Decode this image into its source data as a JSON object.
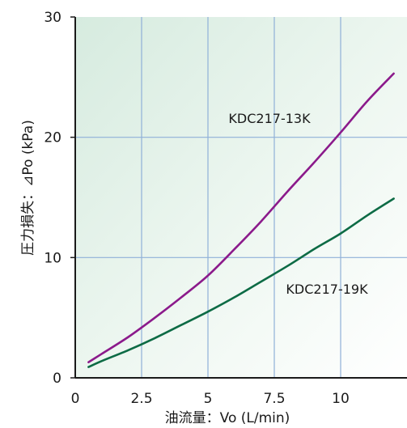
{
  "chart_data": {
    "type": "line",
    "title": "",
    "xlabel": "油流量：Vo (L/min)",
    "ylabel": "圧力損失：⊿Po (kPa)",
    "xlim": [
      0,
      12.5
    ],
    "ylim": [
      0,
      30
    ],
    "x_ticks": [
      "0",
      "2.5",
      "5",
      "7.5",
      "10"
    ],
    "y_ticks": [
      "0",
      "10",
      "20",
      "30"
    ],
    "grid": true,
    "background": "light green gradient",
    "series": [
      {
        "name": "KDC217-13K",
        "color": "#8b1a8b",
        "x": [
          0.5,
          1,
          2,
          3,
          4,
          5,
          6,
          7,
          8,
          9,
          10,
          11,
          12
        ],
        "y": [
          1.3,
          2.0,
          3.4,
          5.0,
          6.7,
          8.5,
          10.7,
          13.0,
          15.5,
          17.9,
          20.4,
          23.0,
          25.3
        ]
      },
      {
        "name": "KDC217-19K",
        "color": "#0d6b45",
        "x": [
          0.5,
          1,
          2,
          3,
          4,
          5,
          6,
          7,
          8,
          9,
          10,
          11,
          12
        ],
        "y": [
          0.9,
          1.4,
          2.3,
          3.3,
          4.4,
          5.5,
          6.7,
          8.0,
          9.3,
          10.7,
          12.0,
          13.5,
          14.9
        ]
      }
    ]
  }
}
